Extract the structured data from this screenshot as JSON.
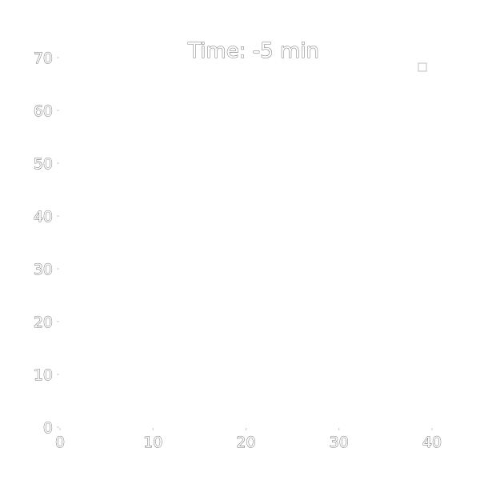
{
  "chart_data": {
    "type": "scatter",
    "title": "Time: -5 min",
    "xlabel": "",
    "ylabel": "",
    "xlim": [
      0,
      40
    ],
    "ylim": [
      0,
      70
    ],
    "x_ticks": [
      "0",
      "10",
      "20",
      "30",
      "40"
    ],
    "y_ticks": [
      "0",
      "10",
      "20",
      "30",
      "40",
      "50",
      "60",
      "70"
    ],
    "series": [
      {
        "x": [],
        "y": []
      }
    ],
    "grid": false,
    "legend_placement": "top-right",
    "colors": {
      "text_outline": "#4a4a4a",
      "background": "#ffffff"
    }
  }
}
